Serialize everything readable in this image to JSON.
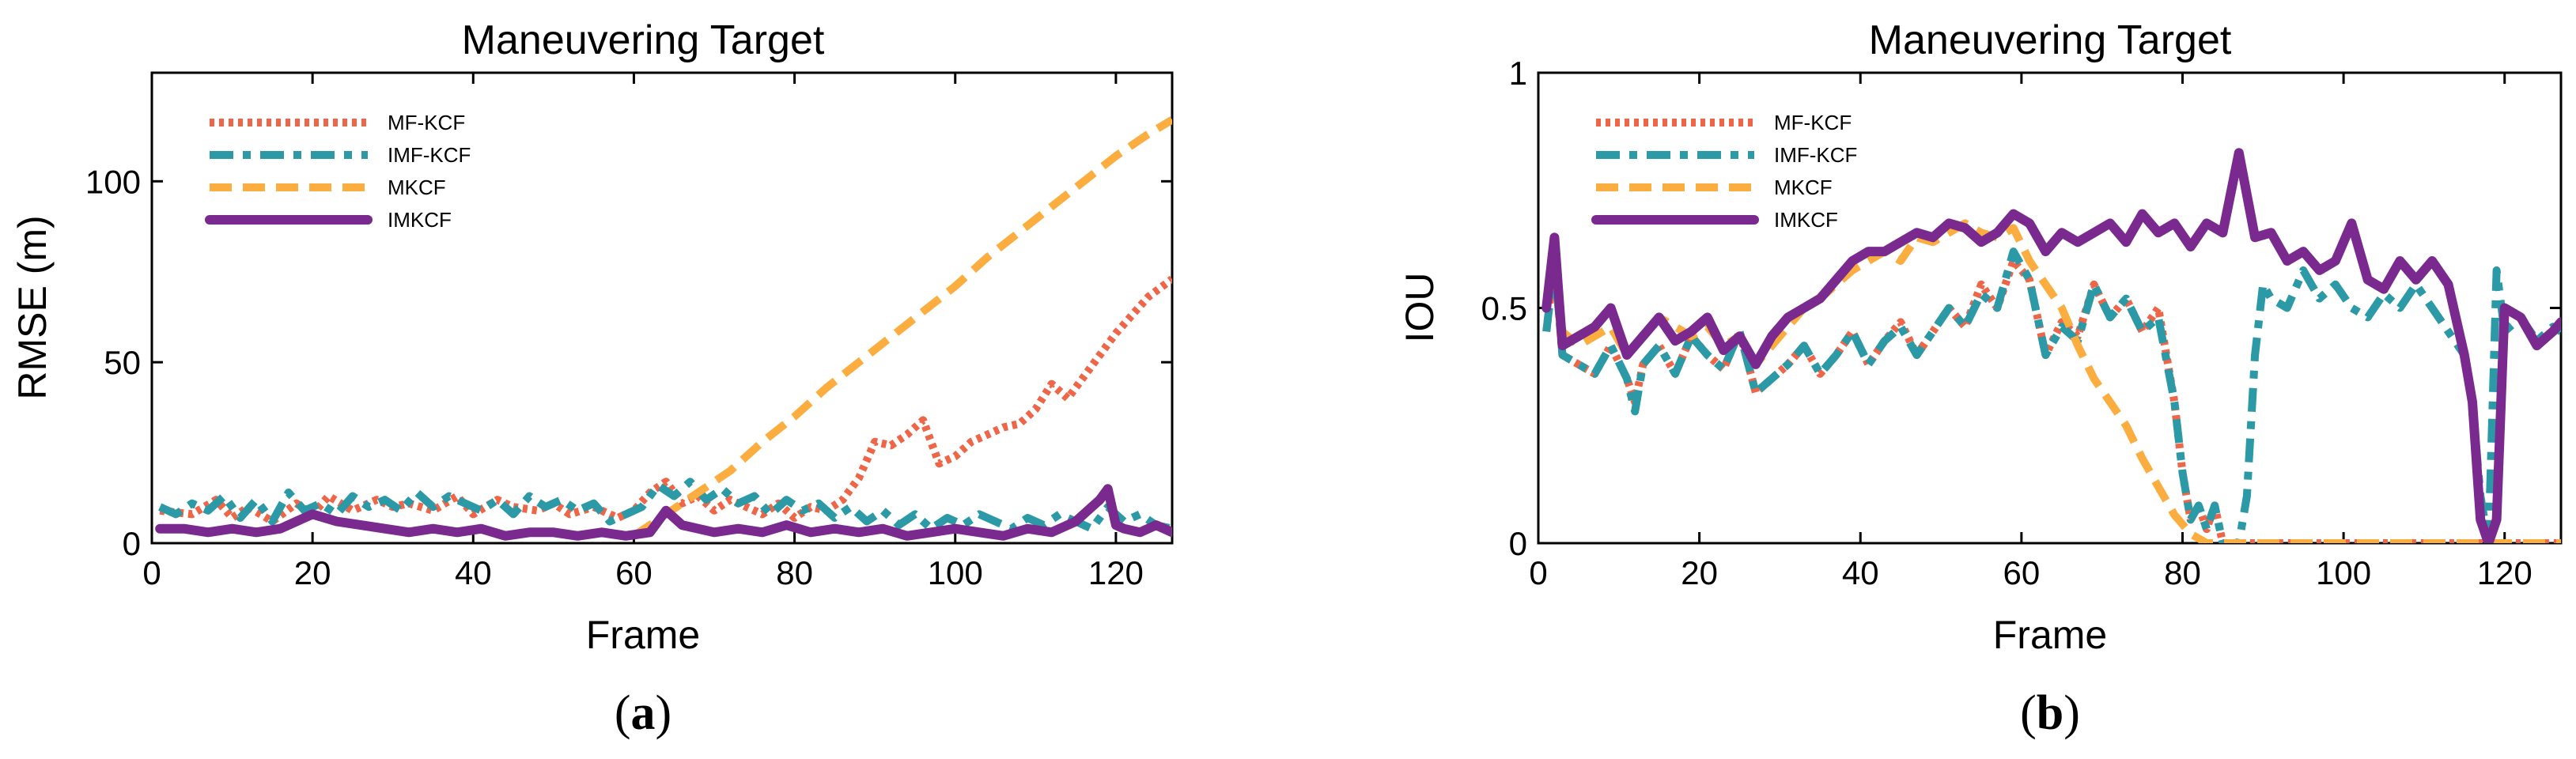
{
  "series_styles": [
    {
      "name": "MF-KCF",
      "color": "#EF6547",
      "dash": "6 6",
      "width": 10,
      "cap": "butt"
    },
    {
      "name": "IMF-KCF",
      "color": "#2B9AA6",
      "dash": "30 12 10 12",
      "width": 10,
      "cap": "butt"
    },
    {
      "name": "MKCF",
      "color": "#FBAE3F",
      "dash": "28 14",
      "width": 10,
      "cap": "butt"
    },
    {
      "name": "IMKCF",
      "color": "#7A2A8F",
      "dash": "",
      "width": 12,
      "cap": "round"
    }
  ],
  "chart_data": [
    {
      "type": "line",
      "caption": "(a)",
      "caption_letter": "a",
      "title": "Maneuvering Target",
      "xlabel": "Frame",
      "ylabel": "RMSE (m)",
      "xlim": [
        0,
        127
      ],
      "ylim": [
        0,
        130
      ],
      "xticks": [
        0,
        20,
        40,
        60,
        80,
        100,
        120
      ],
      "yticks": [
        0,
        50,
        100
      ],
      "xtick_labels": [
        "0",
        "20",
        "40",
        "60",
        "80",
        "100",
        "120"
      ],
      "ytick_labels": [
        "0",
        "50",
        "100"
      ],
      "legend_position": "top-left",
      "series": [
        {
          "name": "MF-KCF",
          "x": [
            1,
            5,
            8,
            10,
            12,
            15,
            18,
            20,
            22,
            25,
            28,
            30,
            32,
            35,
            38,
            40,
            43,
            45,
            48,
            50,
            52,
            55,
            58,
            60,
            62,
            64,
            66,
            68,
            70,
            72,
            74,
            76,
            78,
            80,
            82,
            84,
            86,
            88,
            90,
            92,
            94,
            96,
            98,
            100,
            102,
            104,
            106,
            108,
            110,
            112,
            114,
            116,
            118,
            120,
            122,
            124,
            127
          ],
          "values": [
            9,
            8,
            12,
            7,
            10,
            6,
            11,
            8,
            13,
            9,
            12,
            10,
            11,
            9,
            13,
            8,
            12,
            10,
            9,
            11,
            8,
            10,
            7,
            9,
            14,
            17,
            11,
            13,
            9,
            12,
            10,
            8,
            11,
            7,
            10,
            9,
            12,
            18,
            28,
            27,
            30,
            34,
            22,
            24,
            28,
            30,
            32,
            33,
            37,
            44,
            40,
            46,
            52,
            58,
            63,
            68,
            73
          ]
        },
        {
          "name": "IMF-KCF",
          "x": [
            1,
            3,
            5,
            7,
            9,
            11,
            13,
            15,
            17,
            19,
            21,
            23,
            25,
            27,
            29,
            31,
            33,
            35,
            37,
            39,
            41,
            43,
            45,
            47,
            49,
            51,
            53,
            55,
            57,
            59,
            61,
            63,
            65,
            67,
            69,
            71,
            73,
            75,
            77,
            79,
            81,
            83,
            85,
            87,
            89,
            91,
            93,
            95,
            97,
            99,
            101,
            103,
            105,
            107,
            109,
            111,
            113,
            115,
            117,
            119,
            121,
            123,
            125,
            127
          ],
          "values": [
            10,
            8,
            11,
            9,
            13,
            7,
            12,
            6,
            14,
            9,
            11,
            8,
            13,
            10,
            12,
            9,
            14,
            10,
            13,
            11,
            9,
            12,
            8,
            13,
            10,
            12,
            9,
            11,
            6,
            8,
            10,
            16,
            13,
            17,
            12,
            15,
            11,
            13,
            8,
            12,
            9,
            11,
            7,
            10,
            6,
            9,
            5,
            8,
            4,
            7,
            5,
            8,
            6,
            4,
            7,
            5,
            8,
            6,
            4,
            10,
            6,
            8,
            5,
            4
          ]
        },
        {
          "name": "MKCF",
          "x": [
            60,
            64,
            68,
            72,
            76,
            80,
            84,
            88,
            92,
            96,
            100,
            104,
            108,
            112,
            116,
            120,
            124,
            127
          ],
          "values": [
            2,
            8,
            14,
            20,
            28,
            35,
            43,
            50,
            57,
            64,
            71,
            79,
            86,
            93,
            100,
            107,
            113,
            117
          ]
        },
        {
          "name": "IMKCF",
          "x": [
            1,
            4,
            7,
            10,
            13,
            16,
            18,
            20,
            23,
            26,
            29,
            32,
            35,
            38,
            41,
            44,
            47,
            50,
            53,
            56,
            59,
            62,
            64,
            66,
            68,
            70,
            73,
            76,
            79,
            82,
            85,
            88,
            91,
            94,
            97,
            100,
            103,
            106,
            109,
            112,
            115,
            117,
            118,
            119,
            120,
            121,
            123,
            125,
            127
          ],
          "values": [
            4,
            4,
            3,
            4,
            3,
            4,
            6,
            8,
            6,
            5,
            4,
            3,
            4,
            3,
            4,
            2,
            3,
            3,
            2,
            3,
            2,
            3,
            9,
            5,
            4,
            3,
            4,
            3,
            5,
            3,
            4,
            3,
            4,
            2,
            3,
            4,
            3,
            2,
            4,
            3,
            6,
            10,
            12,
            15,
            5,
            4,
            3,
            5,
            3
          ]
        }
      ]
    },
    {
      "type": "line",
      "caption": "(b)",
      "caption_letter": "b",
      "title": "Maneuvering Target",
      "xlabel": "Frame",
      "ylabel": "IOU",
      "xlim": [
        0,
        127
      ],
      "ylim": [
        0,
        1
      ],
      "xticks": [
        0,
        20,
        40,
        60,
        80,
        100,
        120
      ],
      "yticks": [
        0,
        0.5,
        1
      ],
      "xtick_labels": [
        "0",
        "20",
        "40",
        "60",
        "80",
        "100",
        "120"
      ],
      "ytick_labels": [
        "0",
        "0.5",
        "1"
      ],
      "legend_position": "top-left",
      "series": [
        {
          "name": "MF-KCF",
          "x": [
            1,
            2,
            3,
            5,
            7,
            9,
            11,
            12,
            13,
            15,
            17,
            19,
            21,
            23,
            25,
            27,
            29,
            31,
            33,
            35,
            37,
            39,
            41,
            43,
            45,
            47,
            49,
            51,
            53,
            55,
            57,
            59,
            61,
            63,
            65,
            67,
            69,
            71,
            73,
            75,
            77,
            79,
            80,
            81,
            82,
            83,
            84,
            85,
            86,
            87,
            88,
            89,
            90,
            92,
            94,
            96,
            98,
            100,
            102,
            104,
            106,
            108,
            110,
            112,
            114,
            116,
            117,
            118,
            119,
            120,
            122,
            124,
            127
          ],
          "values": [
            0.45,
            0.6,
            0.4,
            0.38,
            0.36,
            0.42,
            0.35,
            0.3,
            0.38,
            0.42,
            0.36,
            0.44,
            0.4,
            0.37,
            0.45,
            0.32,
            0.35,
            0.38,
            0.42,
            0.36,
            0.4,
            0.45,
            0.38,
            0.43,
            0.47,
            0.4,
            0.45,
            0.5,
            0.46,
            0.55,
            0.5,
            0.6,
            0.56,
            0.4,
            0.47,
            0.44,
            0.55,
            0.48,
            0.52,
            0.45,
            0.5,
            0.3,
            0.15,
            0.05,
            0.08,
            0.03,
            0.08,
            0.0,
            0.0,
            0.0,
            0.0,
            0.0,
            0.0,
            0.0,
            0.0,
            0.0,
            0.0,
            0.0,
            0.0,
            0.0,
            0.0,
            0.0,
            0.0,
            0.0,
            0.0,
            0.0,
            0.0,
            0.0,
            0.0,
            0.0,
            0.0,
            0.0,
            0.0
          ]
        },
        {
          "name": "IMF-KCF",
          "x": [
            1,
            2,
            3,
            5,
            7,
            9,
            11,
            12,
            13,
            15,
            17,
            19,
            21,
            23,
            25,
            27,
            29,
            31,
            33,
            35,
            37,
            39,
            41,
            43,
            45,
            47,
            49,
            51,
            53,
            55,
            57,
            59,
            61,
            63,
            65,
            67,
            69,
            71,
            73,
            75,
            77,
            79,
            80,
            81,
            82,
            83,
            84,
            85,
            86,
            87,
            88,
            89,
            90,
            91,
            93,
            95,
            97,
            99,
            101,
            103,
            105,
            107,
            109,
            111,
            113,
            115,
            116,
            117,
            118,
            119,
            120,
            122,
            124,
            126,
            127
          ],
          "values": [
            0.45,
            0.6,
            0.4,
            0.38,
            0.36,
            0.42,
            0.35,
            0.28,
            0.38,
            0.42,
            0.36,
            0.44,
            0.4,
            0.37,
            0.45,
            0.32,
            0.35,
            0.38,
            0.42,
            0.36,
            0.4,
            0.45,
            0.38,
            0.43,
            0.46,
            0.4,
            0.45,
            0.5,
            0.46,
            0.53,
            0.5,
            0.62,
            0.56,
            0.4,
            0.46,
            0.43,
            0.55,
            0.48,
            0.52,
            0.45,
            0.48,
            0.3,
            0.15,
            0.05,
            0.08,
            0.03,
            0.08,
            0.0,
            0.0,
            0.0,
            0.1,
            0.4,
            0.55,
            0.52,
            0.5,
            0.58,
            0.52,
            0.55,
            0.5,
            0.48,
            0.53,
            0.5,
            0.55,
            0.5,
            0.45,
            0.4,
            0.3,
            0.1,
            0.0,
            0.58,
            0.45,
            0.48,
            0.43,
            0.46,
            0.45
          ]
        },
        {
          "name": "MKCF",
          "x": [
            1,
            2,
            3,
            5,
            7,
            9,
            11,
            13,
            15,
            17,
            19,
            21,
            23,
            25,
            27,
            29,
            31,
            33,
            35,
            37,
            39,
            41,
            43,
            45,
            47,
            49,
            51,
            53,
            55,
            57,
            59,
            61,
            63,
            65,
            67,
            69,
            71,
            73,
            75,
            77,
            79,
            81,
            83,
            84,
            127
          ],
          "values": [
            0.5,
            0.62,
            0.45,
            0.42,
            0.44,
            0.46,
            0.4,
            0.44,
            0.48,
            0.46,
            0.44,
            0.46,
            0.42,
            0.44,
            0.38,
            0.42,
            0.46,
            0.5,
            0.52,
            0.55,
            0.58,
            0.6,
            0.62,
            0.6,
            0.65,
            0.64,
            0.66,
            0.68,
            0.66,
            0.65,
            0.67,
            0.6,
            0.55,
            0.5,
            0.42,
            0.35,
            0.3,
            0.25,
            0.18,
            0.12,
            0.06,
            0.02,
            0.0,
            0.0,
            0.0
          ]
        },
        {
          "name": "IMKCF",
          "x": [
            1,
            2,
            3,
            5,
            7,
            9,
            11,
            13,
            15,
            17,
            19,
            21,
            23,
            25,
            27,
            29,
            31,
            33,
            35,
            37,
            39,
            41,
            43,
            45,
            47,
            49,
            51,
            53,
            55,
            57,
            59,
            61,
            63,
            65,
            67,
            69,
            71,
            73,
            75,
            77,
            79,
            81,
            83,
            85,
            87,
            89,
            91,
            93,
            95,
            97,
            99,
            101,
            103,
            105,
            107,
            109,
            111,
            113,
            115,
            116,
            117,
            118,
            119,
            120,
            122,
            124,
            126,
            127
          ],
          "values": [
            0.5,
            0.65,
            0.42,
            0.44,
            0.46,
            0.5,
            0.4,
            0.44,
            0.48,
            0.43,
            0.45,
            0.48,
            0.41,
            0.44,
            0.38,
            0.44,
            0.48,
            0.5,
            0.52,
            0.56,
            0.6,
            0.62,
            0.62,
            0.64,
            0.66,
            0.65,
            0.68,
            0.67,
            0.64,
            0.66,
            0.7,
            0.68,
            0.62,
            0.66,
            0.64,
            0.66,
            0.68,
            0.64,
            0.7,
            0.66,
            0.68,
            0.63,
            0.68,
            0.66,
            0.83,
            0.65,
            0.66,
            0.6,
            0.62,
            0.58,
            0.6,
            0.68,
            0.56,
            0.54,
            0.6,
            0.56,
            0.6,
            0.55,
            0.4,
            0.3,
            0.05,
            0.0,
            0.05,
            0.5,
            0.48,
            0.42,
            0.45,
            0.47
          ]
        }
      ]
    }
  ]
}
